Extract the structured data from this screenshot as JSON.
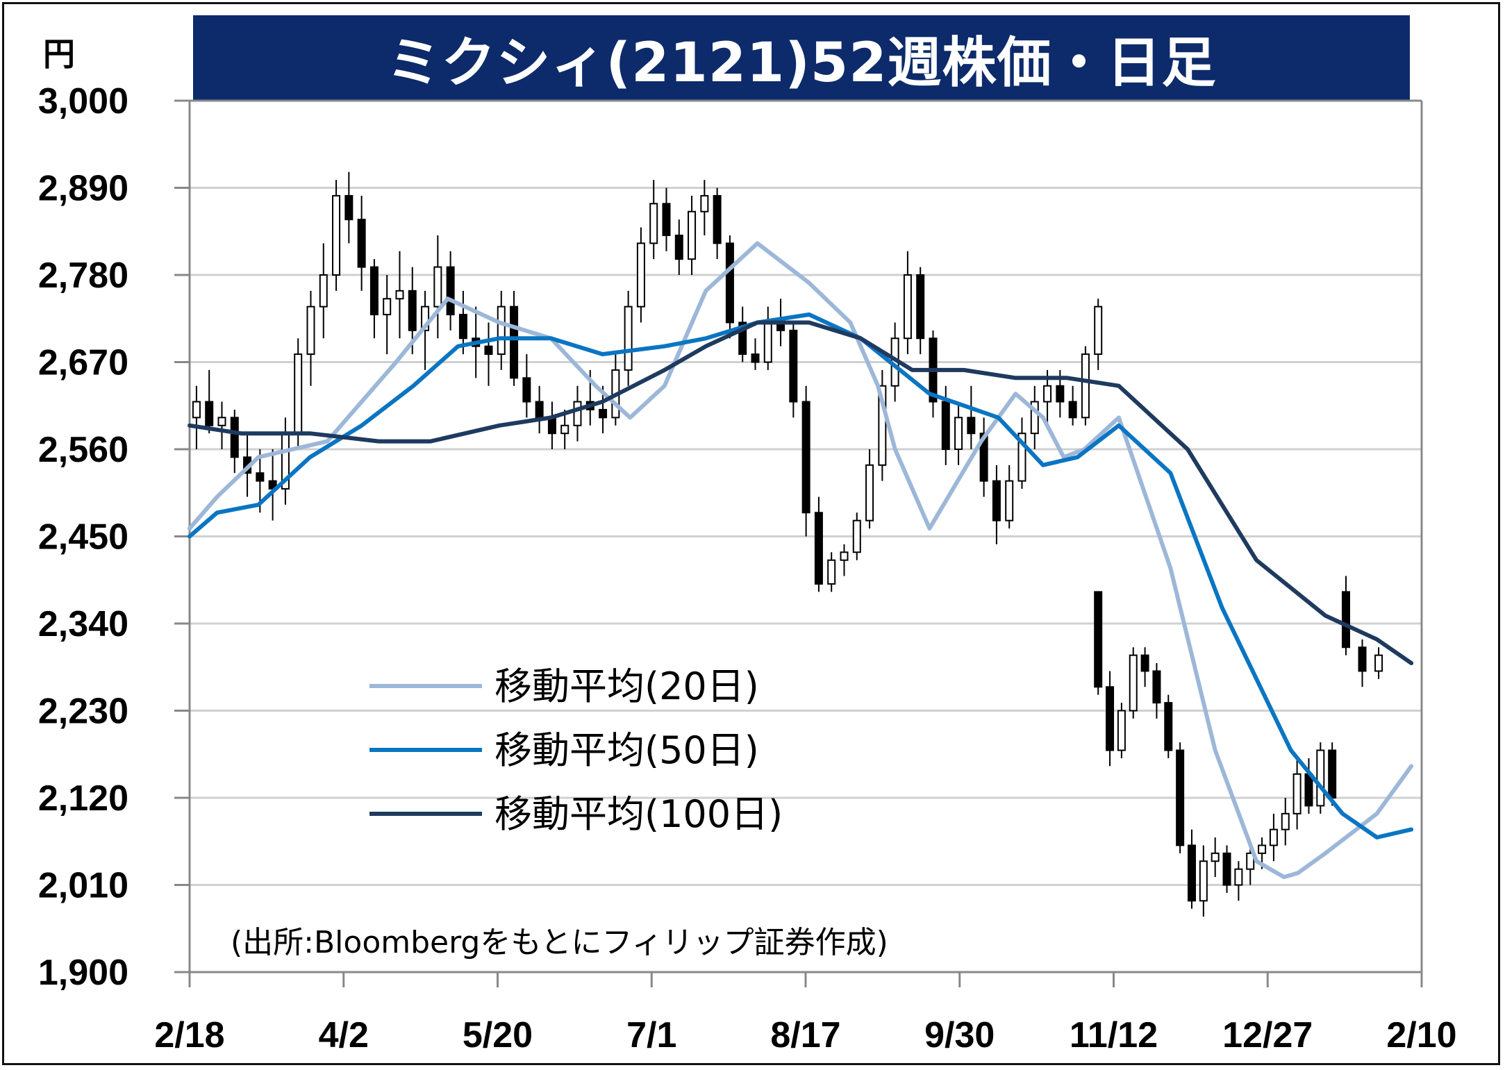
{
  "title": "ミクシィ(2121)52週株価・日足",
  "unit": "円",
  "source": "(出所:Bloombergをもとにフィリップ証券作成)",
  "chart_data": {
    "type": "candlestick",
    "title": "ミクシィ(2121)52週株価・日足",
    "ylabel": "円",
    "ylim": [
      1900,
      3000
    ],
    "y_ticks": [
      "3,000",
      "2,890",
      "2,780",
      "2,670",
      "2,560",
      "2,450",
      "2,340",
      "2,230",
      "2,120",
      "2,010",
      "1,900"
    ],
    "x_ticks": [
      "2/18",
      "4/2",
      "5/20",
      "7/1",
      "8/17",
      "9/30",
      "11/12",
      "12/27",
      "2/10"
    ],
    "grid": true,
    "legend_position": "left-middle",
    "series": [
      {
        "name": "移動平均(20日)",
        "color": "#9db7d8",
        "x": [
          0,
          8,
          20,
          40,
          60,
          75,
          90,
          105,
          118,
          128,
          138,
          150,
          165,
          180,
          192,
          200,
          205,
          215,
          230,
          240,
          248,
          254,
          260,
          270,
          285,
          298,
          310,
          318,
          322,
          330,
          345,
          355
        ],
        "values": [
          2460,
          2500,
          2550,
          2570,
          2670,
          2750,
          2720,
          2700,
          2640,
          2600,
          2640,
          2760,
          2820,
          2770,
          2720,
          2640,
          2560,
          2460,
          2570,
          2630,
          2600,
          2550,
          2560,
          2600,
          2410,
          2180,
          2040,
          2020,
          2025,
          2050,
          2100,
          2160
        ]
      },
      {
        "name": "移動平均(50日)",
        "color": "#0a75c2",
        "x": [
          0,
          8,
          20,
          35,
          50,
          65,
          78,
          90,
          105,
          120,
          138,
          150,
          165,
          180,
          195,
          215,
          235,
          248,
          258,
          270,
          285,
          300,
          320,
          335,
          345,
          355
        ],
        "values": [
          2450,
          2480,
          2490,
          2550,
          2590,
          2640,
          2690,
          2700,
          2700,
          2680,
          2690,
          2700,
          2720,
          2730,
          2700,
          2630,
          2600,
          2540,
          2550,
          2590,
          2530,
          2360,
          2180,
          2100,
          2070,
          2080
        ]
      },
      {
        "name": "移動平均(100日)",
        "color": "#1f3a5f",
        "x": [
          0,
          15,
          35,
          55,
          70,
          90,
          105,
          120,
          138,
          150,
          165,
          180,
          195,
          210,
          225,
          240,
          255,
          270,
          290,
          310,
          330,
          345,
          355
        ],
        "values": [
          2590,
          2580,
          2580,
          2570,
          2570,
          2590,
          2600,
          2620,
          2660,
          2690,
          2720,
          2720,
          2700,
          2660,
          2660,
          2650,
          2650,
          2640,
          2560,
          2420,
          2350,
          2320,
          2290
        ]
      }
    ],
    "candles": [
      [
        2600,
        2640,
        2560,
        2620
      ],
      [
        2620,
        2660,
        2580,
        2590
      ],
      [
        2590,
        2620,
        2560,
        2600
      ],
      [
        2600,
        2610,
        2530,
        2550
      ],
      [
        2550,
        2580,
        2500,
        2530
      ],
      [
        2530,
        2560,
        2480,
        2520
      ],
      [
        2520,
        2560,
        2470,
        2510
      ],
      [
        2510,
        2600,
        2490,
        2580
      ],
      [
        2580,
        2700,
        2560,
        2680
      ],
      [
        2680,
        2760,
        2640,
        2740
      ],
      [
        2740,
        2820,
        2700,
        2780
      ],
      [
        2780,
        2900,
        2760,
        2880
      ],
      [
        2880,
        2910,
        2820,
        2850
      ],
      [
        2850,
        2880,
        2760,
        2790
      ],
      [
        2790,
        2800,
        2700,
        2730
      ],
      [
        2730,
        2780,
        2680,
        2750
      ],
      [
        2750,
        2810,
        2700,
        2760
      ],
      [
        2760,
        2790,
        2680,
        2710
      ],
      [
        2710,
        2760,
        2660,
        2740
      ],
      [
        2740,
        2830,
        2700,
        2790
      ],
      [
        2790,
        2810,
        2710,
        2730
      ],
      [
        2730,
        2760,
        2680,
        2700
      ],
      [
        2700,
        2740,
        2650,
        2690
      ],
      [
        2690,
        2720,
        2640,
        2680
      ],
      [
        2680,
        2760,
        2660,
        2740
      ],
      [
        2740,
        2760,
        2640,
        2650
      ],
      [
        2650,
        2680,
        2600,
        2620
      ],
      [
        2620,
        2640,
        2580,
        2600
      ],
      [
        2600,
        2620,
        2560,
        2580
      ],
      [
        2580,
        2610,
        2560,
        2590
      ],
      [
        2590,
        2640,
        2570,
        2620
      ],
      [
        2620,
        2660,
        2590,
        2610
      ],
      [
        2610,
        2640,
        2580,
        2600
      ],
      [
        2600,
        2680,
        2590,
        2660
      ],
      [
        2660,
        2760,
        2640,
        2740
      ],
      [
        2740,
        2840,
        2720,
        2820
      ],
      [
        2820,
        2900,
        2800,
        2870
      ],
      [
        2870,
        2890,
        2810,
        2830
      ],
      [
        2830,
        2850,
        2780,
        2800
      ],
      [
        2800,
        2880,
        2780,
        2860
      ],
      [
        2860,
        2900,
        2830,
        2880
      ],
      [
        2880,
        2890,
        2800,
        2820
      ],
      [
        2820,
        2830,
        2700,
        2720
      ],
      [
        2720,
        2740,
        2670,
        2680
      ],
      [
        2680,
        2700,
        2660,
        2670
      ],
      [
        2670,
        2740,
        2660,
        2720
      ],
      [
        2720,
        2750,
        2690,
        2710
      ],
      [
        2710,
        2720,
        2600,
        2620
      ],
      [
        2620,
        2640,
        2450,
        2480
      ],
      [
        2480,
        2500,
        2380,
        2390
      ],
      [
        2390,
        2430,
        2380,
        2420
      ],
      [
        2420,
        2440,
        2400,
        2430
      ],
      [
        2430,
        2480,
        2420,
        2470
      ],
      [
        2470,
        2560,
        2460,
        2540
      ],
      [
        2540,
        2660,
        2520,
        2640
      ],
      [
        2640,
        2720,
        2620,
        2700
      ],
      [
        2700,
        2810,
        2680,
        2780
      ],
      [
        2780,
        2790,
        2680,
        2700
      ],
      [
        2700,
        2710,
        2600,
        2620
      ],
      [
        2620,
        2640,
        2540,
        2560
      ],
      [
        2560,
        2620,
        2540,
        2600
      ],
      [
        2600,
        2640,
        2560,
        2580
      ],
      [
        2580,
        2600,
        2500,
        2520
      ],
      [
        2520,
        2540,
        2440,
        2470
      ],
      [
        2470,
        2540,
        2460,
        2520
      ],
      [
        2520,
        2600,
        2510,
        2580
      ],
      [
        2580,
        2640,
        2560,
        2620
      ],
      [
        2620,
        2660,
        2590,
        2640
      ],
      [
        2640,
        2660,
        2600,
        2620
      ],
      [
        2620,
        2640,
        2590,
        2600
      ],
      [
        2600,
        2690,
        2590,
        2680
      ],
      [
        2680,
        2750,
        2660,
        2740
      ],
      [
        2380,
        2380,
        2250,
        2260
      ],
      [
        2260,
        2280,
        2160,
        2180
      ],
      [
        2180,
        2240,
        2170,
        2230
      ],
      [
        2230,
        2310,
        2220,
        2300
      ],
      [
        2300,
        2310,
        2260,
        2280
      ],
      [
        2280,
        2290,
        2220,
        2240
      ],
      [
        2240,
        2250,
        2170,
        2180
      ],
      [
        2180,
        2190,
        2050,
        2060
      ],
      [
        2060,
        2080,
        1980,
        1990
      ],
      [
        1990,
        2060,
        1970,
        2040
      ],
      [
        2040,
        2070,
        2020,
        2050
      ],
      [
        2050,
        2060,
        2000,
        2010
      ],
      [
        2010,
        2040,
        1990,
        2030
      ],
      [
        2030,
        2060,
        2010,
        2050
      ],
      [
        2050,
        2070,
        2030,
        2060
      ],
      [
        2060,
        2100,
        2040,
        2080
      ],
      [
        2080,
        2120,
        2060,
        2100
      ],
      [
        2100,
        2170,
        2080,
        2150
      ],
      [
        2150,
        2170,
        2100,
        2110
      ],
      [
        2110,
        2190,
        2100,
        2180
      ],
      [
        2180,
        2190,
        2110,
        2120
      ],
      [
        2380,
        2400,
        2300,
        2310
      ],
      [
        2310,
        2320,
        2260,
        2280
      ],
      [
        2280,
        2310,
        2270,
        2300
      ]
    ]
  }
}
